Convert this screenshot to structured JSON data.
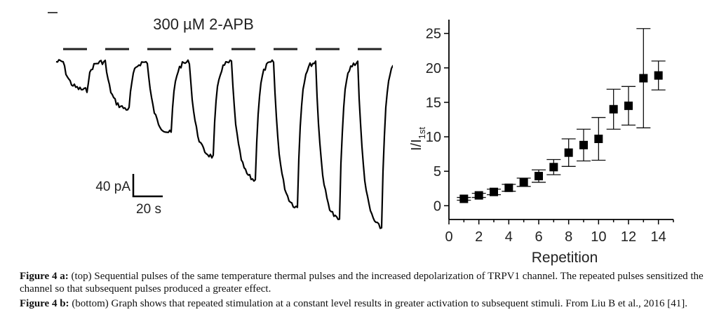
{
  "trace_panel": {
    "drug_label": "300 µM 2-APB",
    "scale_current": "40 pA",
    "scale_time": "20 s",
    "pulse_count": 8,
    "pulse_relative_depth": [
      0.18,
      0.3,
      0.45,
      0.6,
      0.75,
      0.92,
      1.0,
      1.05
    ]
  },
  "chart_data": {
    "type": "scatter",
    "xlabel": "Repetition",
    "ylabel": "I/I",
    "ylabel_sub": "1st",
    "xlim": [
      0,
      15
    ],
    "ylim": [
      -2,
      27
    ],
    "xticks": [
      0,
      2,
      4,
      6,
      8,
      10,
      12,
      14
    ],
    "yticks": [
      0,
      5,
      10,
      15,
      20,
      25
    ],
    "series": [
      {
        "x": [
          1,
          2,
          3,
          4,
          5,
          6,
          7,
          8,
          9,
          10,
          11,
          12,
          13,
          14
        ],
        "y": [
          1.0,
          1.5,
          2.0,
          2.6,
          3.4,
          4.3,
          5.6,
          7.7,
          8.8,
          9.7,
          14.0,
          14.5,
          18.5,
          18.9
        ],
        "err": [
          0.2,
          0.3,
          0.4,
          0.5,
          0.6,
          0.9,
          1.1,
          2.0,
          2.3,
          3.1,
          2.9,
          2.8,
          7.2,
          2.1
        ]
      }
    ]
  },
  "caption": {
    "a_label": "Figure 4 a:",
    "a_text": " (top) Sequential pulses of the same temperature thermal pulses and the increased depolarization of TRPV1 channel. The repeated pulses sensitized the channel so that subsequent pulses produced a greater effect.",
    "b_label": "Figure 4 b:",
    "b_text": " (bottom) Graph shows that repeated stimulation at a constant level results in greater activation to subsequent stimuli. From Liu B et al., 2016 [41]."
  }
}
